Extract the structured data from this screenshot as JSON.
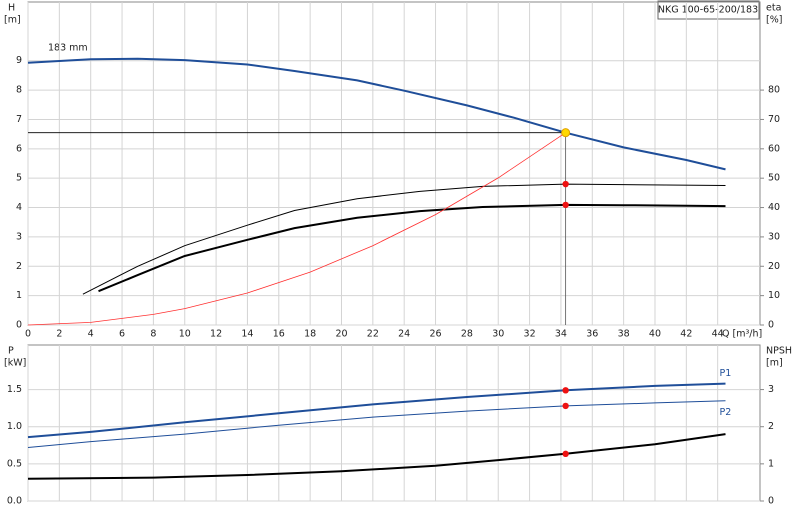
{
  "chart_data": [
    {
      "type": "line",
      "xlabel": "Q [m³/h]",
      "ylabel": "H",
      "yunit": "[m]",
      "y2label": "eta",
      "y2unit": "[%]",
      "model": "NKG 100-65-200/183",
      "annotation": "183 mm",
      "xlim": [
        0,
        46.7
      ],
      "xticks": [
        0,
        2,
        4,
        6,
        8,
        10,
        12,
        14,
        16,
        18,
        20,
        22,
        24,
        26,
        28,
        30,
        32,
        34,
        36,
        38,
        40,
        42,
        44
      ],
      "ylim": [
        0,
        11
      ],
      "yticks": [
        0,
        1,
        2,
        3,
        4,
        5,
        6,
        7,
        8,
        9
      ],
      "y2lim": [
        0,
        110
      ],
      "y2ticks": [
        0,
        10,
        20,
        30,
        40,
        50,
        60,
        70,
        80
      ],
      "grid": true,
      "show_xtick_labels": true,
      "crosshair": true,
      "series": [
        {
          "color": "#1f4e99",
          "width": 2,
          "x": [
            0,
            4,
            7,
            10,
            14,
            17,
            21,
            24,
            28,
            31,
            34.3,
            38,
            42,
            44.5
          ],
          "values": [
            8.93,
            9.05,
            9.07,
            9.02,
            8.87,
            8.65,
            8.33,
            7.98,
            7.48,
            7.06,
            6.55,
            6.05,
            5.62,
            5.3
          ]
        },
        {
          "color": "#000000",
          "width": 1,
          "axis": "y2",
          "x": [
            3.5,
            7,
            10,
            14,
            17,
            21,
            25,
            29,
            34.3,
            38,
            44.5
          ],
          "values": [
            10.5,
            20,
            27,
            34,
            39,
            43,
            45.5,
            47.2,
            48,
            47.8,
            47.5
          ]
        },
        {
          "color": "#000000",
          "width": 2,
          "axis": "y2",
          "x": [
            4.5,
            7,
            10,
            14,
            17,
            21,
            25,
            29,
            34.3,
            38,
            44.5
          ],
          "values": [
            11.5,
            17,
            23.5,
            29,
            33,
            36.5,
            38.8,
            40.2,
            40.9,
            40.8,
            40.5
          ]
        },
        {
          "color": "#ff3030",
          "width": 0.8,
          "x": [
            0,
            4,
            8,
            10,
            14,
            18,
            22,
            26,
            30,
            34.3
          ],
          "values": [
            0,
            0.09,
            0.36,
            0.56,
            1.09,
            1.8,
            2.7,
            3.76,
            5.01,
            6.55
          ]
        }
      ],
      "points": [
        {
          "x": 34.3,
          "y": 6.55,
          "color": "#ffd800"
        },
        {
          "x": 34.3,
          "y": 48,
          "color": "#ee1111",
          "axis": "y2"
        },
        {
          "x": 34.3,
          "y": 40.9,
          "color": "#ee1111",
          "axis": "y2"
        }
      ]
    },
    {
      "type": "line",
      "ylabel": "P",
      "yunit": "[kW]",
      "y2label": "NPSH",
      "y2unit": "[m]",
      "xlim": [
        0,
        46.7
      ],
      "xticks": [
        0,
        2,
        4,
        6,
        8,
        10,
        12,
        14,
        16,
        18,
        20,
        22,
        24,
        26,
        28,
        30,
        32,
        34,
        36,
        38,
        40,
        42,
        44
      ],
      "ylim": [
        0,
        2.1
      ],
      "yticks": [
        {
          "value": 0,
          "label": "0.0"
        },
        0.5,
        {
          "value": 1,
          "label": "1.0"
        },
        1.5
      ],
      "y2lim": [
        0,
        4.2
      ],
      "y2ticks": [
        0,
        1,
        2,
        3
      ],
      "grid": true,
      "show_xtick_labels": false,
      "crosshair": false,
      "series": [
        {
          "name": "P1",
          "color": "#1f4e99",
          "width": 2,
          "x": [
            0,
            4,
            10,
            16,
            22,
            28,
            34.3,
            40,
            44.5
          ],
          "values": [
            0.86,
            0.93,
            1.06,
            1.18,
            1.3,
            1.4,
            1.49,
            1.55,
            1.58
          ]
        },
        {
          "name": "P2",
          "color": "#1f4e99",
          "width": 1,
          "x": [
            0,
            4,
            10,
            16,
            22,
            28,
            34.3,
            40,
            44.5
          ],
          "values": [
            0.72,
            0.8,
            0.9,
            1.02,
            1.13,
            1.21,
            1.28,
            1.32,
            1.35
          ]
        },
        {
          "color": "#000000",
          "width": 2,
          "axis": "y2",
          "x": [
            0,
            8,
            14,
            20,
            26,
            30,
            34.3,
            40,
            44.5
          ],
          "values": [
            0.6,
            0.63,
            0.7,
            0.8,
            0.95,
            1.1,
            1.27,
            1.53,
            1.8
          ]
        }
      ],
      "points": [
        {
          "x": 34.3,
          "y": 1.49,
          "color": "#ee1111"
        },
        {
          "x": 34.3,
          "y": 1.28,
          "color": "#ee1111"
        },
        {
          "x": 34.3,
          "y": 1.27,
          "color": "#ee1111",
          "axis": "y2"
        }
      ]
    }
  ]
}
